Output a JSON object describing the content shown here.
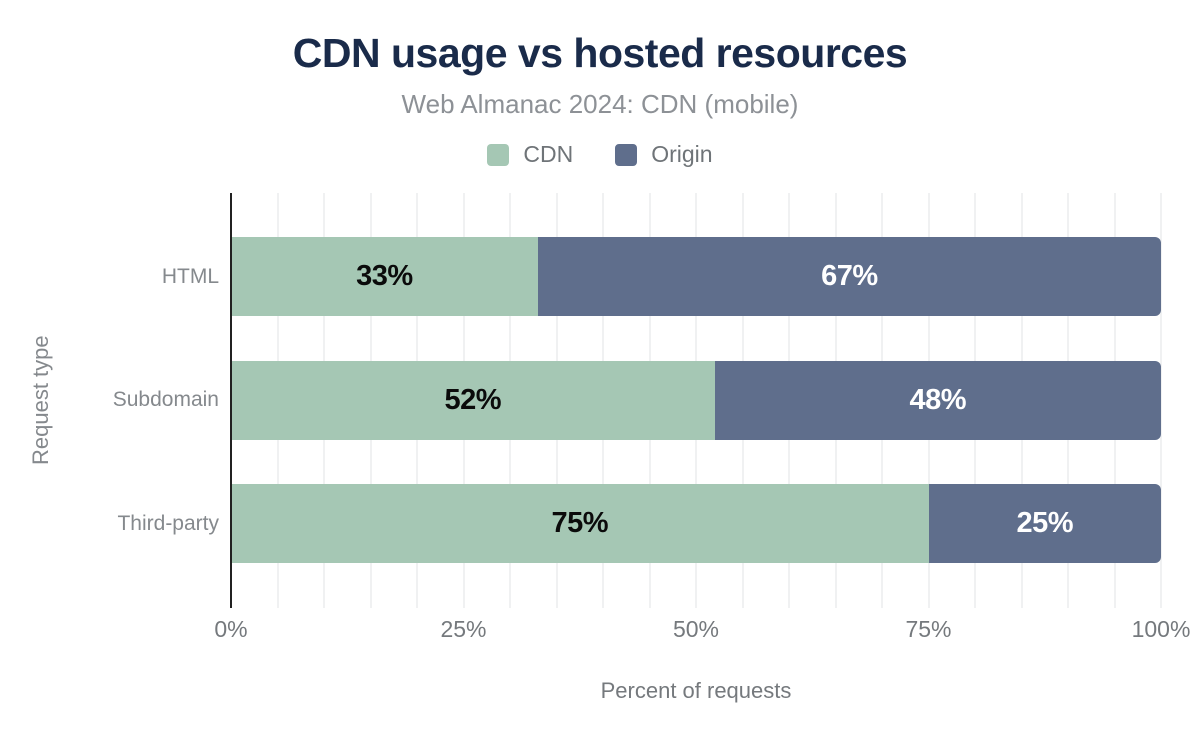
{
  "chart_data": {
    "type": "bar",
    "stacked": true,
    "orientation": "horizontal",
    "title": "CDN usage vs hosted resources",
    "subtitle": "Web Almanac 2024: CDN (mobile)",
    "categories": [
      "HTML",
      "Subdomain",
      "Third-party"
    ],
    "series": [
      {
        "name": "CDN",
        "color": "#a5c7b4",
        "label_color": "#0b0b0b",
        "values": [
          33,
          52,
          75
        ]
      },
      {
        "name": "Origin",
        "color": "#5f6e8c",
        "label_color": "#ffffff",
        "values": [
          67,
          48,
          25
        ]
      }
    ],
    "value_suffix": "%",
    "xlabel": "Percent of requests",
    "ylabel": "Request type",
    "xlim": [
      0,
      100
    ],
    "x_ticks": [
      {
        "value": 0,
        "label": "0%"
      },
      {
        "value": 25,
        "label": "25%"
      },
      {
        "value": 50,
        "label": "50%"
      },
      {
        "value": 75,
        "label": "75%"
      },
      {
        "value": 100,
        "label": "100%"
      }
    ],
    "grid": {
      "minor_step_percent": 5,
      "on": true
    },
    "legend_position": "top"
  },
  "colors": {
    "background": "#ffffff",
    "title": "#1a2b4a",
    "subtitle": "#8d9196",
    "legend_text": "#6f7478",
    "category_labels": "#85898d",
    "tick_labels": "#75797d",
    "axis_line": "#212121",
    "grid_line": "#f0f1f2",
    "cdn_green": "#a5c7b4",
    "origin_blue": "#5f6e8c"
  }
}
